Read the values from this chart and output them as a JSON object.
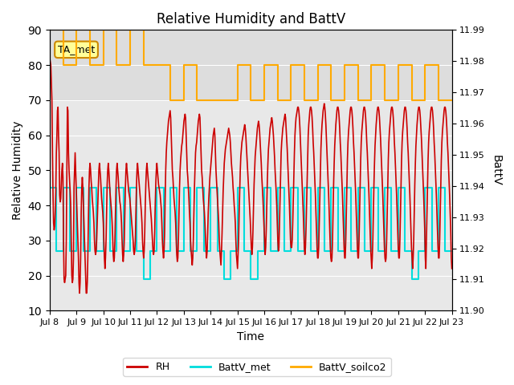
{
  "title": "Relative Humidity and BattV",
  "xlabel": "Time",
  "ylabel_left": "Relative Humidity",
  "ylabel_right": "BattV",
  "ylim_left": [
    10,
    90
  ],
  "ylim_right": [
    11.9,
    11.99
  ],
  "background_color": "#ffffff",
  "plot_bg_color": "#e8e8e8",
  "annotation_text": "TA_met",
  "annotation_bg": "#ffff99",
  "annotation_border": "#cc8800",
  "x_tick_labels": [
    "Jul 8",
    "Jul 9",
    "Jul 10",
    "Jul 11",
    "Jul 12",
    "Jul 13",
    "Jul 14",
    "Jul 15",
    "Jul 16",
    "Jul 17",
    "Jul 18",
    "Jul 19",
    "Jul 20",
    "Jul 21",
    "Jul 22",
    "Jul 23"
  ],
  "x_tick_positions": [
    0,
    1,
    2,
    3,
    4,
    5,
    6,
    7,
    8,
    9,
    10,
    11,
    12,
    13,
    14,
    15
  ],
  "rh_color": "#cc0000",
  "battv_met_color": "#00dddd",
  "battv_soilco2_color": "#ffaa00",
  "legend_entries": [
    "RH",
    "BattV_met",
    "BattV_soilco2"
  ],
  "rh_data": [
    82,
    81,
    80,
    75,
    70,
    55,
    43,
    35,
    33,
    34,
    38,
    44,
    55,
    60,
    67,
    68,
    60,
    55,
    43,
    41,
    42,
    46,
    50,
    52,
    48,
    30,
    19,
    18,
    19,
    20,
    30,
    50,
    68,
    67,
    55,
    50,
    47,
    44,
    40,
    30,
    20,
    18,
    19,
    25,
    45,
    50,
    55,
    50,
    45,
    40,
    35,
    30,
    25,
    18,
    15,
    18,
    25,
    38,
    45,
    48,
    45,
    40,
    35,
    30,
    25,
    20,
    15,
    15,
    18,
    25,
    35,
    45,
    50,
    52,
    50,
    47,
    45,
    42,
    40,
    38,
    35,
    30,
    27,
    26,
    27,
    30,
    35,
    40,
    45,
    50,
    52,
    50,
    48,
    45,
    42,
    40,
    38,
    35,
    30,
    25,
    22,
    25,
    30,
    38,
    46,
    50,
    52,
    50,
    47,
    44,
    42,
    40,
    38,
    35,
    31,
    26,
    24,
    25,
    30,
    38,
    45,
    50,
    52,
    50,
    48,
    45,
    43,
    41,
    40,
    38,
    35,
    30,
    26,
    24,
    26,
    30,
    38,
    45,
    50,
    52,
    50,
    48,
    46,
    44,
    43,
    42,
    40,
    38,
    36,
    34,
    32,
    30,
    27,
    26,
    27,
    30,
    38,
    45,
    50,
    52,
    50,
    48,
    46,
    44,
    42,
    40,
    38,
    35,
    30,
    27,
    25,
    27,
    32,
    40,
    46,
    50,
    52,
    50,
    48,
    46,
    44,
    42,
    40,
    38,
    36,
    33,
    30,
    27,
    26,
    27,
    32,
    40,
    46,
    50,
    52,
    50,
    48,
    46,
    45,
    44,
    43,
    41,
    39,
    35,
    30,
    27,
    25,
    27,
    32,
    42,
    50,
    55,
    58,
    60,
    62,
    64,
    65,
    66,
    67,
    65,
    60,
    55,
    50,
    48,
    45,
    42,
    40,
    38,
    35,
    30,
    26,
    24,
    25,
    30,
    38,
    45,
    50,
    53,
    55,
    57,
    58,
    60,
    62,
    64,
    65,
    66,
    65,
    60,
    55,
    50,
    48,
    45,
    42,
    38,
    35,
    30,
    27,
    25,
    23,
    25,
    30,
    38,
    45,
    50,
    55,
    57,
    58,
    60,
    62,
    64,
    65,
    66,
    65,
    60,
    55,
    50,
    48,
    45,
    42,
    40,
    38,
    35,
    31,
    27,
    25,
    27,
    32,
    38,
    42,
    45,
    48,
    50,
    52,
    54,
    56,
    58,
    60,
    61,
    62,
    60,
    55,
    50,
    47,
    44,
    41,
    38,
    35,
    30,
    27,
    25,
    23,
    27,
    32,
    38,
    44,
    48,
    52,
    54,
    56,
    57,
    58,
    59,
    60,
    61,
    62,
    61,
    60,
    58,
    55,
    52,
    50,
    48,
    45,
    43,
    40,
    38,
    35,
    30,
    26,
    24,
    22,
    26,
    30,
    38,
    44,
    50,
    54,
    56,
    58,
    59,
    60,
    61,
    62,
    63,
    62,
    60,
    57,
    54,
    51,
    48,
    45,
    42,
    39,
    36,
    32,
    28,
    26,
    28,
    33,
    40,
    46,
    50,
    54,
    56,
    58,
    60,
    62,
    63,
    64,
    63,
    61,
    58,
    55,
    52,
    48,
    45,
    42,
    38,
    34,
    30,
    26,
    28,
    33,
    40,
    47,
    52,
    56,
    58,
    60,
    62,
    63,
    64,
    65,
    64,
    62,
    60,
    57,
    54,
    50,
    47,
    44,
    40,
    35,
    30,
    27,
    28,
    35,
    42,
    50,
    55,
    58,
    60,
    62,
    63,
    64,
    65,
    66,
    65,
    62,
    59,
    56,
    52,
    48,
    44,
    40,
    35,
    30,
    28,
    28,
    30,
    35,
    42,
    50,
    55,
    60,
    63,
    65,
    66,
    67,
    68,
    68,
    67,
    65,
    62,
    58,
    54,
    50,
    46,
    42,
    38,
    33,
    28,
    26,
    28,
    33,
    40,
    48,
    55,
    60,
    63,
    65,
    67,
    68,
    68,
    67,
    65,
    62,
    58,
    55,
    51,
    47,
    43,
    38,
    33,
    28,
    25,
    25,
    28,
    35,
    43,
    50,
    56,
    60,
    63,
    65,
    67,
    68,
    69,
    68,
    66,
    63,
    59,
    55,
    51,
    47,
    43,
    38,
    33,
    28,
    25,
    24,
    25,
    30,
    38,
    46,
    52,
    57,
    60,
    63,
    65,
    67,
    68,
    68,
    67,
    65,
    62,
    58,
    55,
    51,
    47,
    43,
    38,
    33,
    28,
    25,
    25,
    30,
    38,
    47,
    53,
    58,
    61,
    63,
    65,
    67,
    68,
    68,
    67,
    65,
    62,
    58,
    55,
    51,
    47,
    43,
    38,
    33,
    28,
    25,
    25,
    30,
    38,
    47,
    53,
    58,
    61,
    63,
    65,
    67,
    68,
    68,
    67,
    65,
    62,
    58,
    55,
    51,
    47,
    43,
    38,
    33,
    28,
    25,
    22,
    25,
    30,
    38,
    46,
    52,
    57,
    60,
    63,
    65,
    67,
    68,
    68,
    67,
    65,
    62,
    59,
    55,
    51,
    47,
    43,
    38,
    33,
    28,
    25,
    24,
    25,
    30,
    38,
    46,
    53,
    58,
    61,
    63,
    65,
    67,
    68,
    68,
    67,
    65,
    62,
    58,
    55,
    51,
    47,
    43,
    38,
    33,
    28,
    25,
    25,
    30,
    38,
    47,
    53,
    58,
    61,
    63,
    65,
    67,
    68,
    68,
    67,
    65,
    62,
    58,
    55,
    51,
    47,
    43,
    38,
    33,
    28,
    25,
    22,
    25,
    30,
    38,
    46,
    52,
    57,
    60,
    63,
    65,
    67,
    68,
    68,
    67,
    65,
    62,
    59,
    55,
    51,
    47,
    43,
    38,
    33,
    25,
    22,
    30,
    38,
    47,
    53,
    58,
    61,
    63,
    65,
    67,
    68,
    68,
    67,
    65,
    62,
    58,
    55,
    51,
    47,
    43,
    38,
    33,
    28,
    25,
    25,
    30,
    38,
    47,
    53,
    58,
    61,
    63,
    65,
    67,
    68,
    68,
    67,
    65,
    62,
    58,
    55,
    51,
    47,
    43,
    38,
    33,
    25,
    22
  ],
  "battv_met_step_times": [
    0,
    0.125,
    0.125,
    0.25,
    0.25,
    0.375,
    0.375,
    0.5,
    0.5,
    0.625,
    0.625,
    0.75,
    0.75,
    0.875,
    0.875,
    1.0
  ],
  "battv_met_step_values": [
    45,
    45,
    27,
    27,
    45,
    45,
    27,
    27,
    20,
    20,
    27,
    27,
    45,
    45,
    27,
    27
  ],
  "battv_soilco2_step_values": [
    90,
    80,
    90,
    90,
    80,
    90,
    70,
    90,
    80,
    90,
    70,
    90,
    80,
    90,
    90,
    80
  ],
  "gray_band_ymin": 70,
  "gray_band_ymax": 90
}
